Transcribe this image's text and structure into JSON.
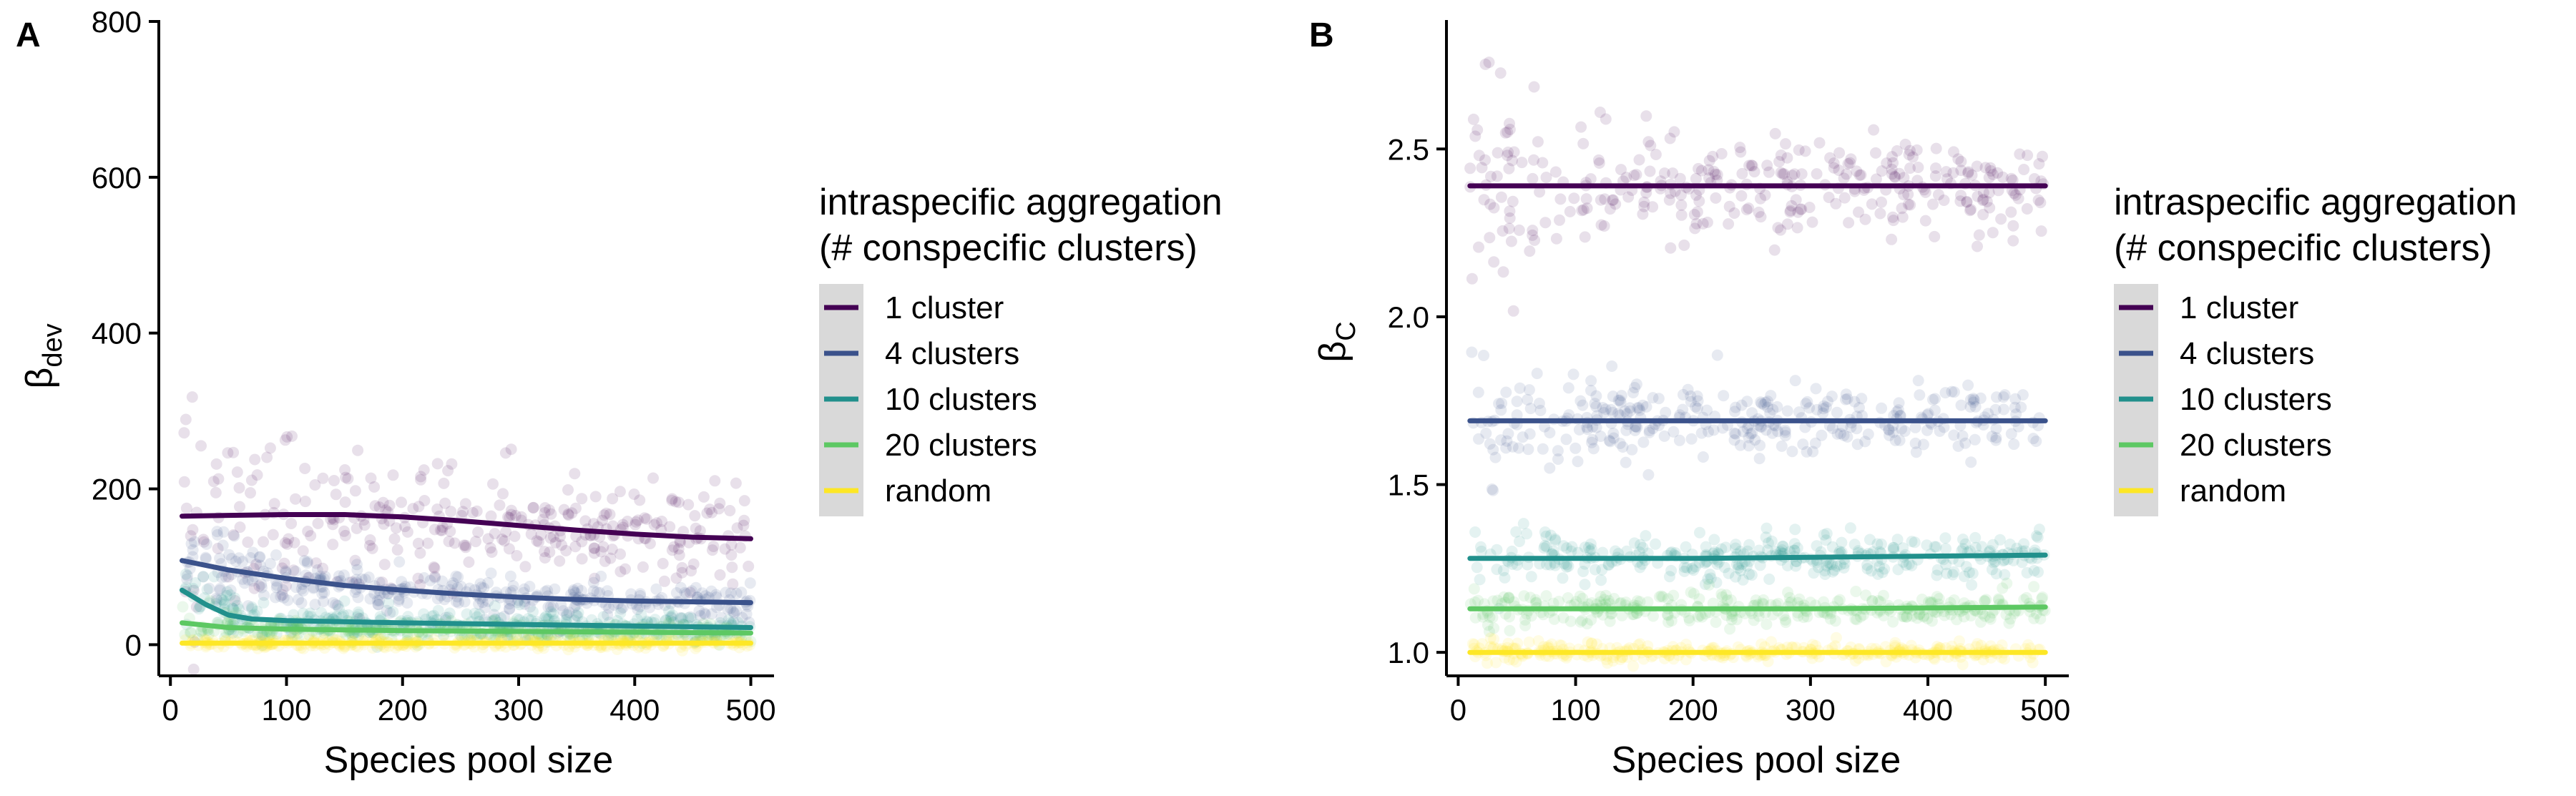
{
  "chart_data": [
    {
      "panel": "A",
      "type": "scatter",
      "xlabel": "Species pool size",
      "ylabel_main": "β",
      "ylabel_sub": "dev",
      "xlim": [
        -10,
        520
      ],
      "ylim": [
        -40,
        800
      ],
      "xticks": [
        0,
        100,
        200,
        300,
        400,
        500
      ],
      "yticks": [
        0,
        200,
        400,
        600,
        800
      ],
      "series": [
        {
          "name": "1 cluster",
          "color": "#440154",
          "trend": [
            [
              10,
              165
            ],
            [
              50,
              166
            ],
            [
              100,
              167
            ],
            [
              150,
              167
            ],
            [
              200,
              164
            ],
            [
              250,
              159
            ],
            [
              300,
              153
            ],
            [
              350,
              147
            ],
            [
              400,
              142
            ],
            [
              450,
              138
            ],
            [
              500,
              136
            ]
          ],
          "spread": 30,
          "spread_start": 120,
          "spread_decay": 80
        },
        {
          "name": "4 clusters",
          "color": "#3B528B",
          "trend": [
            [
              10,
              108
            ],
            [
              50,
              96
            ],
            [
              100,
              85
            ],
            [
              150,
              76
            ],
            [
              200,
              70
            ],
            [
              250,
              65
            ],
            [
              300,
              61
            ],
            [
              350,
              58
            ],
            [
              400,
              56
            ],
            [
              450,
              55
            ],
            [
              500,
              54
            ]
          ],
          "spread": 12,
          "spread_start": 35,
          "spread_decay": 60
        },
        {
          "name": "10 clusters",
          "color": "#21908C",
          "trend": [
            [
              10,
              70
            ],
            [
              30,
              52
            ],
            [
              50,
              38
            ],
            [
              70,
              33
            ],
            [
              100,
              31
            ],
            [
              200,
              28
            ],
            [
              300,
              26
            ],
            [
              400,
              24
            ],
            [
              500,
              22
            ]
          ],
          "spread": 8,
          "spread_start": 25,
          "spread_decay": 40
        },
        {
          "name": "20 clusters",
          "color": "#5DC863",
          "trend": [
            [
              10,
              28
            ],
            [
              50,
              22
            ],
            [
              100,
              20
            ],
            [
              200,
              18
            ],
            [
              300,
              17
            ],
            [
              400,
              16
            ],
            [
              500,
              15
            ]
          ],
          "spread": 6,
          "spread_start": 12,
          "spread_decay": 40
        },
        {
          "name": "random",
          "color": "#FDE725",
          "trend": [
            [
              10,
              2
            ],
            [
              100,
              2
            ],
            [
              200,
              2
            ],
            [
              300,
              2
            ],
            [
              400,
              2
            ],
            [
              500,
              2
            ]
          ],
          "spread": 3,
          "spread_start": 3,
          "spread_decay": 40
        }
      ]
    },
    {
      "panel": "B",
      "type": "scatter",
      "xlabel": "Species pool size",
      "ylabel_main": "β",
      "ylabel_sub": "C",
      "xlim": [
        -10,
        520
      ],
      "ylim": [
        0.93,
        2.88
      ],
      "xticks": [
        0,
        100,
        200,
        300,
        400,
        500
      ],
      "yticks": [
        1.0,
        1.5,
        2.0,
        2.5
      ],
      "ytick_labels": [
        "1.0",
        "1.5",
        "2.0",
        "2.5"
      ],
      "series": [
        {
          "name": "1 cluster",
          "color": "#440154",
          "trend": [
            [
              10,
              2.39
            ],
            [
              500,
              2.39
            ]
          ],
          "spread": 0.07,
          "spread_start": 0.18,
          "spread_decay": 60
        },
        {
          "name": "4 clusters",
          "color": "#3B528B",
          "trend": [
            [
              10,
              1.69
            ],
            [
              500,
              1.69
            ]
          ],
          "spread": 0.05,
          "spread_start": 0.12,
          "spread_decay": 60
        },
        {
          "name": "10 clusters",
          "color": "#21908C",
          "trend": [
            [
              10,
              1.28
            ],
            [
              200,
              1.28
            ],
            [
              500,
              1.29
            ]
          ],
          "spread": 0.03,
          "spread_start": 0.07,
          "spread_decay": 60
        },
        {
          "name": "20 clusters",
          "color": "#5DC863",
          "trend": [
            [
              10,
              1.13
            ],
            [
              300,
              1.13
            ],
            [
              500,
              1.135
            ]
          ],
          "spread": 0.022,
          "spread_start": 0.05,
          "spread_decay": 60
        },
        {
          "name": "random",
          "color": "#FDE725",
          "trend": [
            [
              10,
              1.0
            ],
            [
              500,
              1.0
            ]
          ],
          "spread": 0.012,
          "spread_start": 0.02,
          "spread_decay": 60
        }
      ]
    }
  ],
  "legend": {
    "title_line1": "intraspecific aggregation",
    "title_line2": "(# conspecific clusters)",
    "items": [
      "1 cluster",
      "4 clusters",
      "10 clusters",
      "20 clusters",
      "random"
    ],
    "colors": [
      "#440154",
      "#3B528B",
      "#21908C",
      "#5DC863",
      "#FDE725"
    ]
  }
}
